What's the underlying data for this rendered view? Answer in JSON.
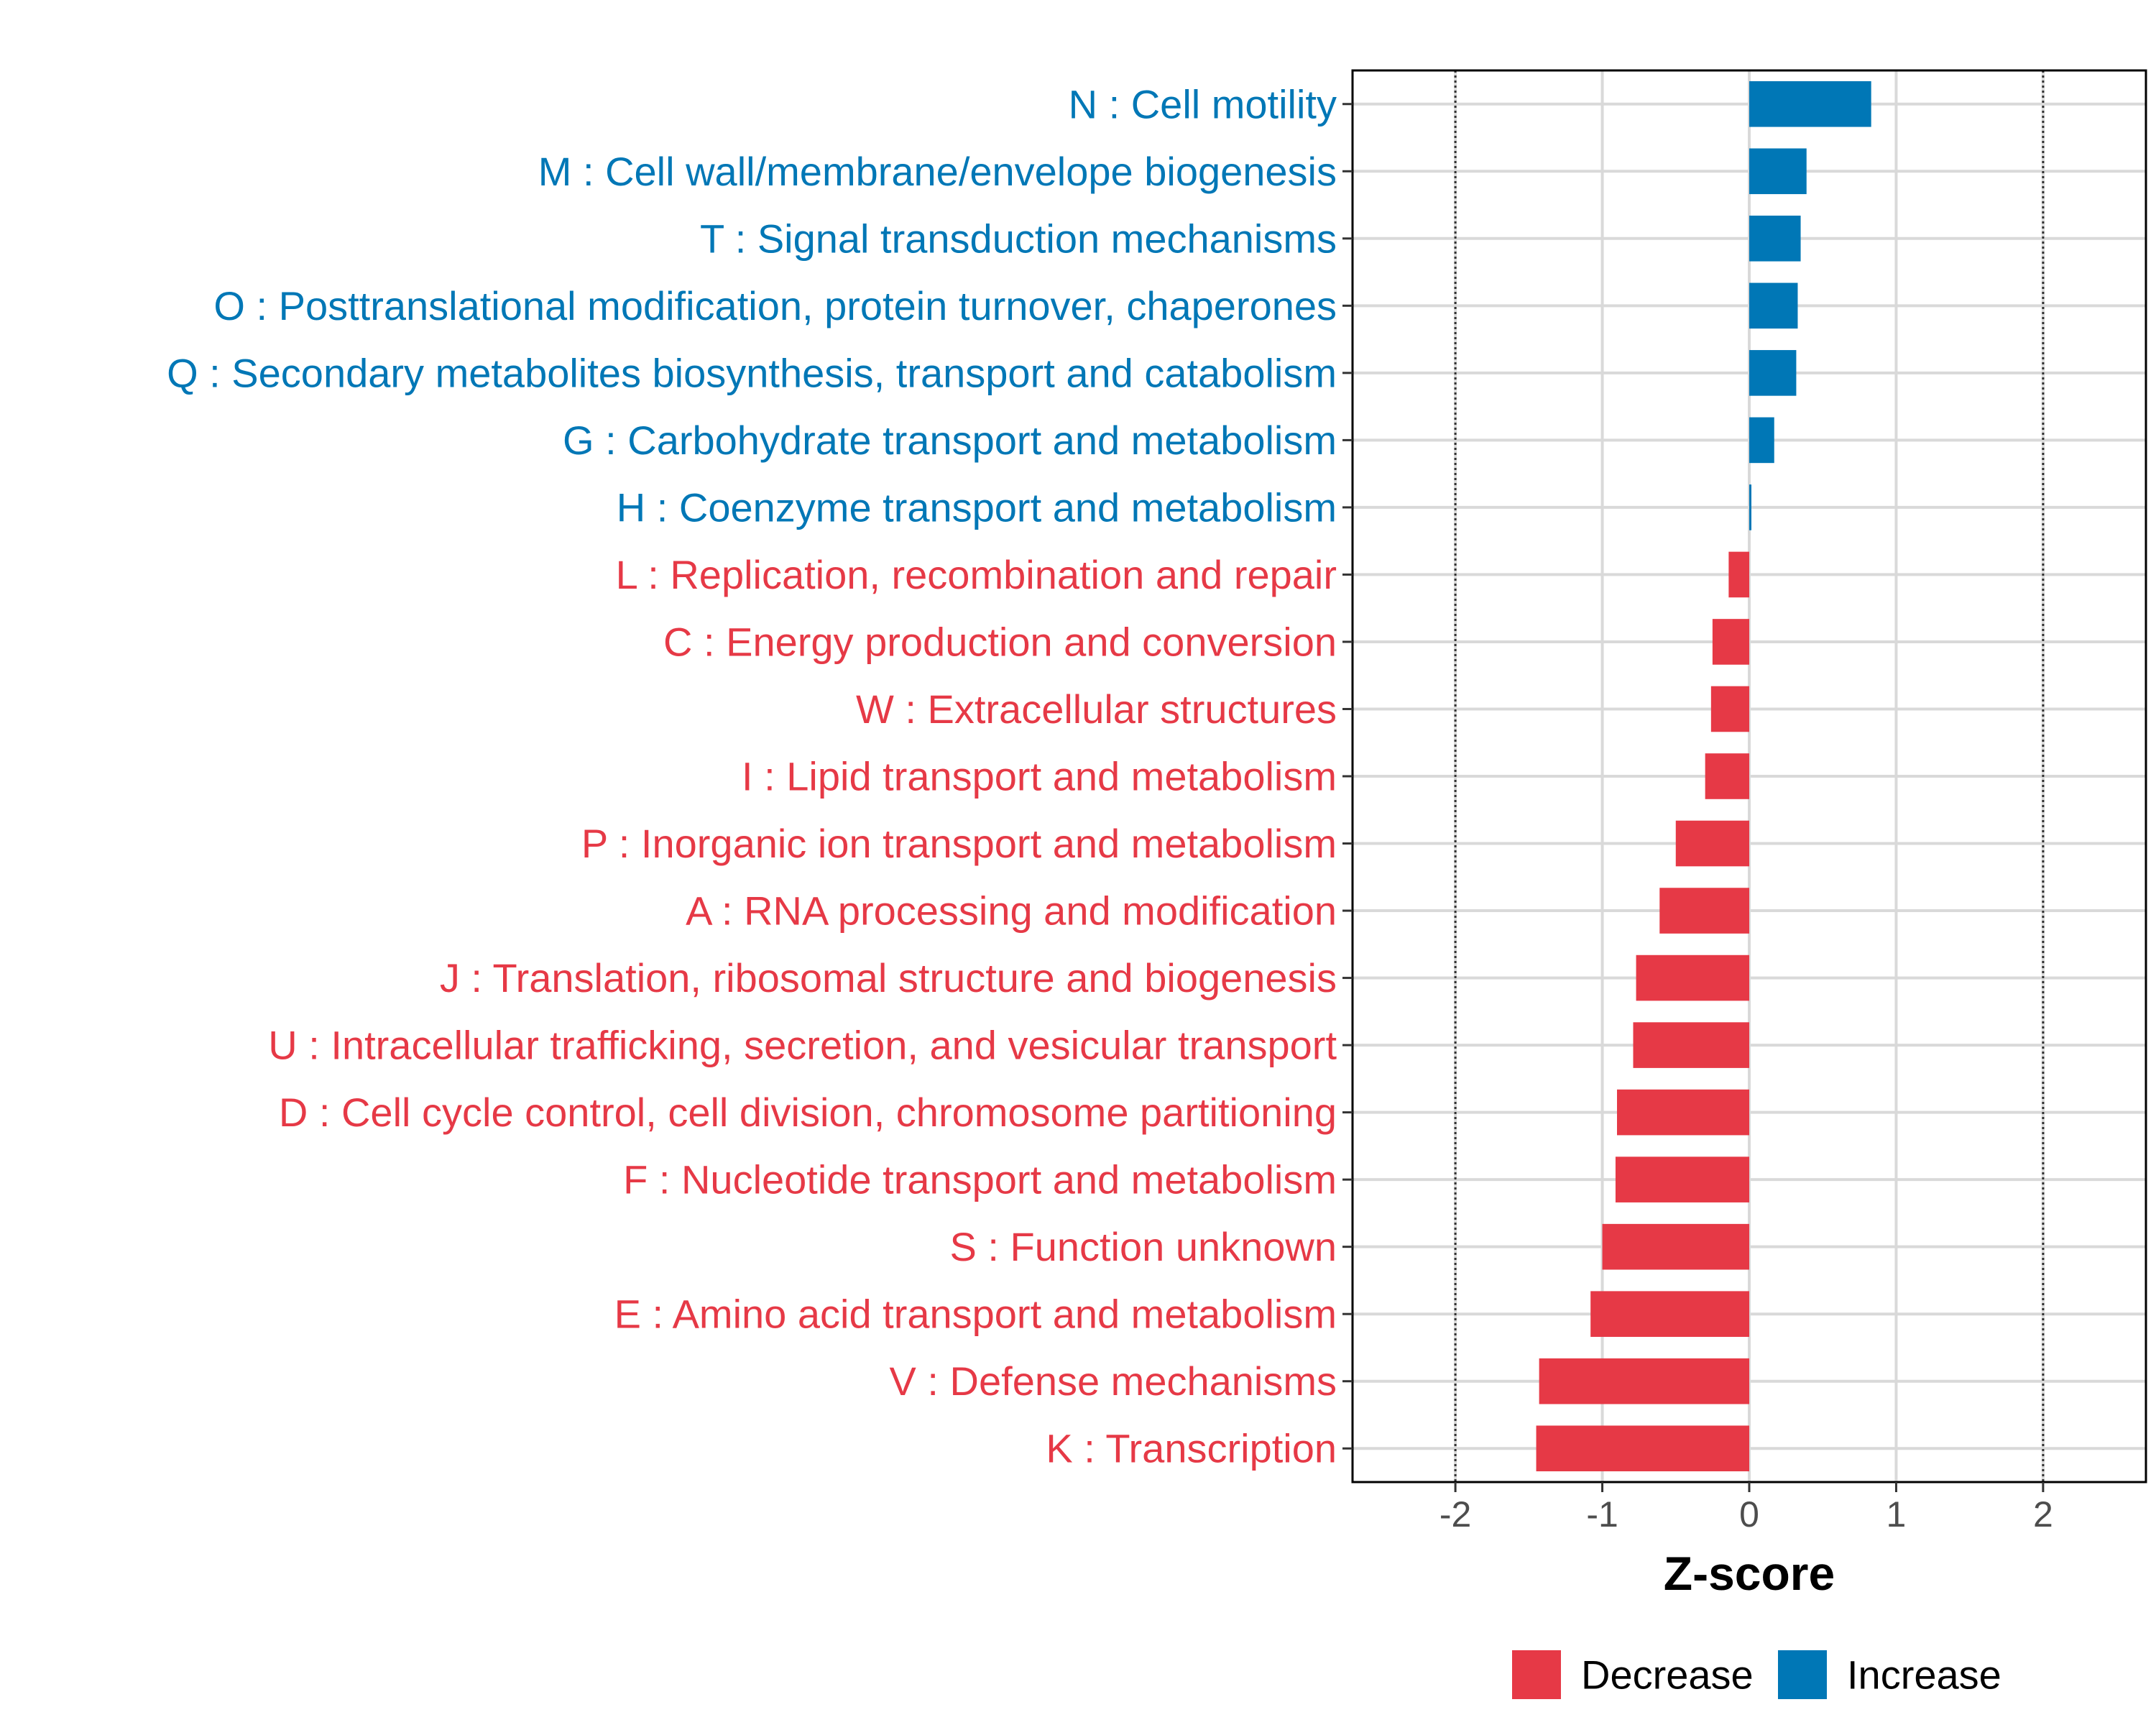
{
  "chart_data": {
    "type": "bar",
    "orientation": "horizontal",
    "xlabel": "Z-score",
    "xlim": [
      -2.7,
      2.7
    ],
    "xticks": [
      -2,
      -1,
      0,
      1,
      2
    ],
    "xtick_labels": [
      "-2",
      "-1",
      "0",
      "1",
      "2"
    ],
    "reference_lines": [
      -2,
      2
    ],
    "grid": true,
    "legend_position": "bottom",
    "legend": [
      {
        "name": "Decrease",
        "color": "#E63946"
      },
      {
        "name": "Increase",
        "color": "#0077B6"
      }
    ],
    "categories": [
      "N : Cell motility",
      "M : Cell wall/membrane/envelope biogenesis",
      "T : Signal transduction mechanisms",
      "O : Posttranslational modification, protein turnover, chaperones",
      "Q : Secondary metabolites biosynthesis, transport and catabolism",
      "G : Carbohydrate transport and metabolism",
      "H : Coenzyme transport and metabolism",
      "L : Replication, recombination and repair",
      "C : Energy production and conversion",
      "W : Extracellular structures",
      "I : Lipid transport and metabolism",
      "P : Inorganic ion transport and metabolism",
      "A : RNA processing and modification",
      "J : Translation, ribosomal structure and biogenesis",
      "U : Intracellular trafficking, secretion, and vesicular transport",
      "D : Cell cycle control, cell division, chromosome partitioning",
      "F : Nucleotide transport and metabolism",
      "S : Function unknown",
      "E : Amino acid transport and metabolism",
      "V : Defense mechanisms",
      "K : Transcription"
    ],
    "values": [
      0.83,
      0.39,
      0.35,
      0.33,
      0.32,
      0.17,
      0.01,
      -0.14,
      -0.25,
      -0.26,
      -0.3,
      -0.5,
      -0.61,
      -0.77,
      -0.79,
      -0.9,
      -0.91,
      -1.0,
      -1.08,
      -1.43,
      -1.45
    ],
    "direction": [
      "Increase",
      "Increase",
      "Increase",
      "Increase",
      "Increase",
      "Increase",
      "Increase",
      "Decrease",
      "Decrease",
      "Decrease",
      "Decrease",
      "Decrease",
      "Decrease",
      "Decrease",
      "Decrease",
      "Decrease",
      "Decrease",
      "Decrease",
      "Decrease",
      "Decrease",
      "Decrease"
    ]
  }
}
